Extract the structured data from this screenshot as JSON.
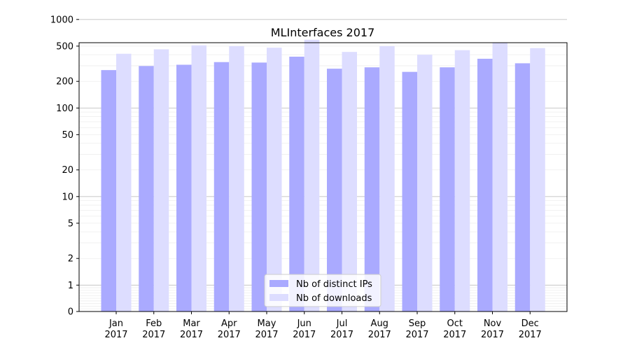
{
  "chart_data": {
    "type": "bar",
    "title": "MLInterfaces 2017",
    "xlabel": "",
    "ylabel": "",
    "yscale": "symlog",
    "ylim": [
      0,
      1000
    ],
    "yticks": [
      0,
      1,
      2,
      5,
      10,
      20,
      50,
      100,
      200,
      500,
      1000
    ],
    "ytick_labels": [
      "0",
      "1",
      "2",
      "5",
      "10",
      "20",
      "50",
      "100",
      "200",
      "500",
      "1000"
    ],
    "categories": [
      {
        "month": "Jan",
        "year": "2017"
      },
      {
        "month": "Feb",
        "year": "2017"
      },
      {
        "month": "Mar",
        "year": "2017"
      },
      {
        "month": "Apr",
        "year": "2017"
      },
      {
        "month": "May",
        "year": "2017"
      },
      {
        "month": "Jun",
        "year": "2017"
      },
      {
        "month": "Jul",
        "year": "2017"
      },
      {
        "month": "Aug",
        "year": "2017"
      },
      {
        "month": "Sep",
        "year": "2017"
      },
      {
        "month": "Oct",
        "year": "2017"
      },
      {
        "month": "Nov",
        "year": "2017"
      },
      {
        "month": "Dec",
        "year": "2017"
      }
    ],
    "series": [
      {
        "name": "Nb of distinct IPs",
        "color": "#aaaaff",
        "values": [
          268,
          298,
          308,
          330,
          326,
          380,
          278,
          288,
          256,
          288,
          360,
          320
        ]
      },
      {
        "name": "Nb of downloads",
        "color": "#ddddff",
        "values": [
          410,
          460,
          510,
          500,
          480,
          590,
          430,
          500,
          400,
          450,
          550,
          475
        ]
      }
    ],
    "grid": true,
    "legend_position": "bottom-center"
  }
}
